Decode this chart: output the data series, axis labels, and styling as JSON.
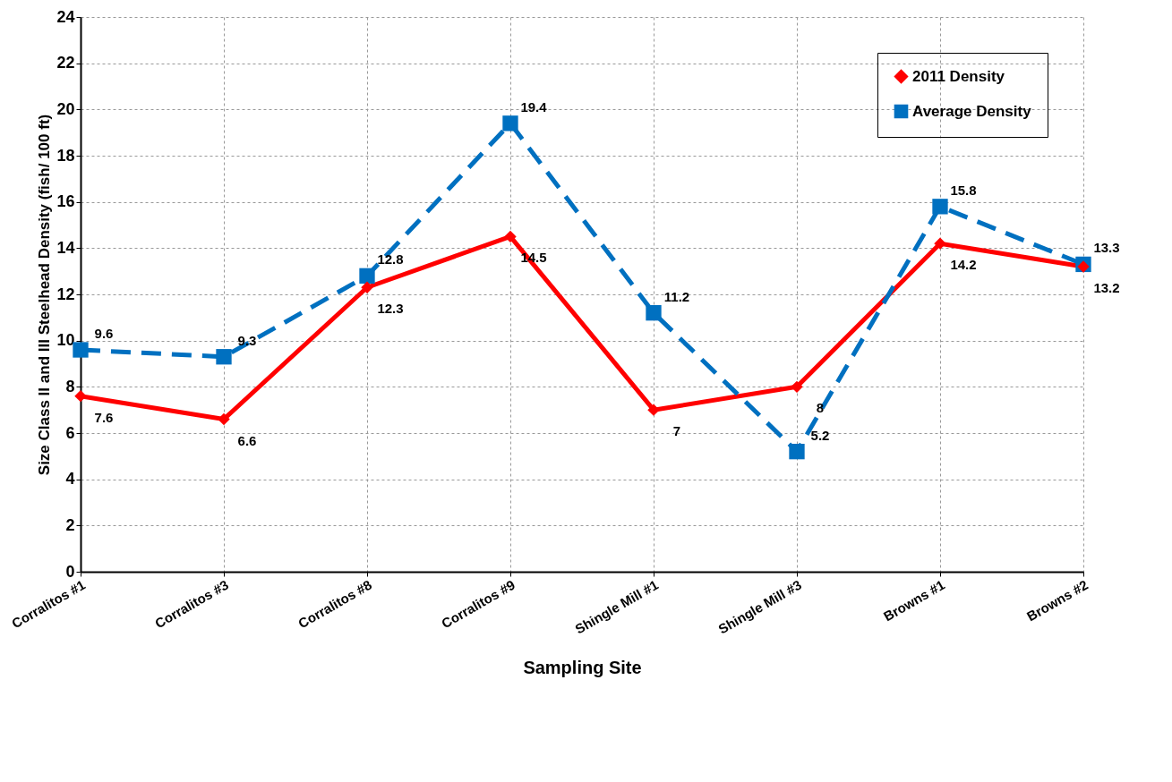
{
  "chart_data": {
    "type": "line",
    "xlabel": "Sampling Site",
    "ylabel": "Size Class II and III Steelhead Density (fish/ 100 ft)",
    "categories": [
      "Corralitos #1",
      "Corralitos #3",
      "Corralitos #8",
      "Corralitos #9",
      "Shingle Mill #1",
      "Shingle Mill #3",
      "Browns #1",
      "Browns #2"
    ],
    "series": [
      {
        "name": "2011 Density",
        "color": "#ff0000",
        "marker": "diamond",
        "line_style": "solid",
        "values": [
          7.6,
          6.6,
          12.3,
          14.5,
          7,
          8,
          14.2,
          13.2
        ]
      },
      {
        "name": "Average Density",
        "color": "#0070c0",
        "marker": "square",
        "line_style": "dashed",
        "values": [
          9.6,
          9.3,
          12.8,
          19.4,
          11.2,
          5.2,
          15.8,
          13.3
        ]
      }
    ],
    "ylim": [
      0,
      24
    ],
    "yticks": [
      0,
      2,
      4,
      6,
      8,
      10,
      12,
      14,
      16,
      18,
      20,
      22,
      24
    ],
    "grid": true,
    "legend": "top right",
    "data_labels": true
  }
}
